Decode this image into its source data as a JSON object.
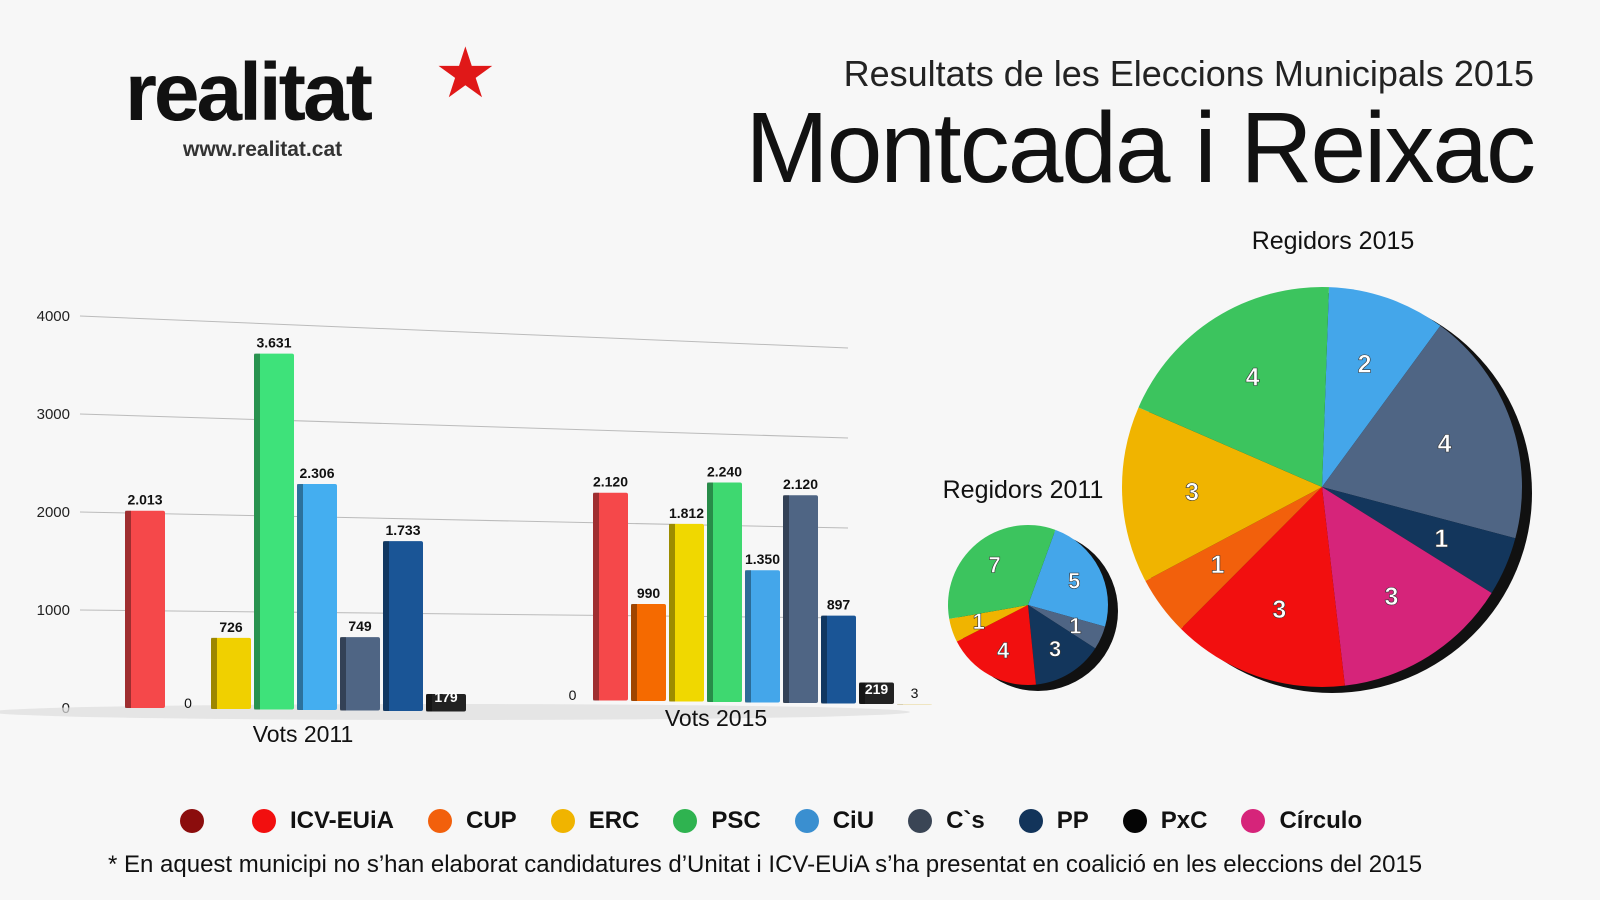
{
  "logo": {
    "name": "realitat",
    "url": "www.realitat.cat"
  },
  "header": {
    "subtitle": "Resultats de les Eleccions Municipals 2015",
    "title": "Montcada i Reixac"
  },
  "legend": [
    {
      "label": "",
      "color": "#8b0d0d"
    },
    {
      "label": "ICV-EUiA",
      "color": "#f20f0f"
    },
    {
      "label": "CUP",
      "color": "#f2600c"
    },
    {
      "label": "ERC",
      "color": "#f0b400"
    },
    {
      "label": "PSC",
      "color": "#2fb350"
    },
    {
      "label": "CiU",
      "color": "#3a8fd0"
    },
    {
      "label": "C`s",
      "color": "#3a4555"
    },
    {
      "label": "PP",
      "color": "#12345a"
    },
    {
      "label": "PxC",
      "color": "#050505"
    },
    {
      "label": "Círculo",
      "color": "#d6247a"
    }
  ],
  "footnote": "* En aquest municipi no s’han elaborat candidatures d’Unitat i ICV-EUiA s’ha presentat en coalició en les eleccions del 2015",
  "chart_data": [
    {
      "type": "bar",
      "title": "Vots",
      "yticks": [
        "0",
        "1000",
        "2000",
        "3000",
        "4000"
      ],
      "ylim": [
        0,
        4000
      ],
      "groups": [
        {
          "label": "Vots 2011",
          "bars": [
            {
              "party": "ICV-EUiA",
              "value": 2013,
              "label": "2.013",
              "color": "#f5484a"
            },
            {
              "party": "CUP",
              "value": 0,
              "label": "0",
              "color": "#f2600c"
            },
            {
              "party": "ERC",
              "value": 726,
              "label": "726",
              "color": "#f0d000"
            },
            {
              "party": "PSC",
              "value": 3631,
              "label": "3.631",
              "color": "#3ee27a"
            },
            {
              "party": "CiU",
              "value": 2306,
              "label": "2.306",
              "color": "#44aef0"
            },
            {
              "party": "C`s",
              "value": 749,
              "label": "749",
              "color": "#4f6584"
            },
            {
              "party": "PP",
              "value": 1733,
              "label": "1.733",
              "color": "#1a5596"
            },
            {
              "party": "PxC",
              "value": 179,
              "label": "179",
              "color": "#222"
            }
          ]
        },
        {
          "label": "Vots 2015",
          "bars": [
            {
              "party": "Unitat",
              "value": 0,
              "label": "0",
              "color": "#8b0d0d"
            },
            {
              "party": "ICV-EUiA",
              "value": 2120,
              "label": "2.120",
              "color": "#f5484a"
            },
            {
              "party": "CUP",
              "value": 990,
              "label": "990",
              "color": "#f56a00"
            },
            {
              "party": "ERC",
              "value": 1812,
              "label": "1.812",
              "color": "#f0d800"
            },
            {
              "party": "PSC",
              "value": 2240,
              "label": "2.240",
              "color": "#3ed870"
            },
            {
              "party": "CiU",
              "value": 1350,
              "label": "1.350",
              "color": "#44a6ea"
            },
            {
              "party": "C`s",
              "value": 2120,
              "label": "2.120",
              "color": "#4f6584"
            },
            {
              "party": "PP",
              "value": 897,
              "label": "897",
              "color": "#1a5596"
            },
            {
              "party": "PxC",
              "value": 219,
              "label": "219",
              "color": "#222"
            },
            {
              "party": "Círculo",
              "value": 3,
              "label": "3",
              "color": "#d8b020"
            }
          ]
        }
      ]
    },
    {
      "type": "pie",
      "title": "Regidors 2011",
      "slices": [
        {
          "party": "CiU",
          "value": 5,
          "label": "5",
          "color": "#44a6ea"
        },
        {
          "party": "C`s",
          "value": 1,
          "label": "1",
          "color": "#4f6584"
        },
        {
          "party": "PP",
          "value": 3,
          "label": "3",
          "color": "#13365c"
        },
        {
          "party": "ICV-EUiA",
          "value": 4,
          "label": "4",
          "color": "#f20f0f"
        },
        {
          "party": "ERC",
          "value": 1,
          "label": "1",
          "color": "#f0b400"
        },
        {
          "party": "PSC",
          "value": 7,
          "label": "7",
          "color": "#3cc45e"
        }
      ]
    },
    {
      "type": "pie",
      "title": "Regidors 2015",
      "slices": [
        {
          "party": "CiU",
          "value": 2,
          "label": "2",
          "color": "#44a6ea"
        },
        {
          "party": "C`s",
          "value": 4,
          "label": "4",
          "color": "#4f6584"
        },
        {
          "party": "PP",
          "value": 1,
          "label": "1",
          "color": "#13365c"
        },
        {
          "party": "Círculo",
          "value": 3,
          "label": "3",
          "color": "#d6247a"
        },
        {
          "party": "ICV-EUiA",
          "value": 3,
          "label": "3",
          "color": "#f20f0f"
        },
        {
          "party": "CUP",
          "value": 1,
          "label": "1",
          "color": "#f2600c"
        },
        {
          "party": "ERC",
          "value": 3,
          "label": "3",
          "color": "#f0b400"
        },
        {
          "party": "PSC",
          "value": 4,
          "label": "4",
          "color": "#3cc45e"
        }
      ]
    }
  ]
}
